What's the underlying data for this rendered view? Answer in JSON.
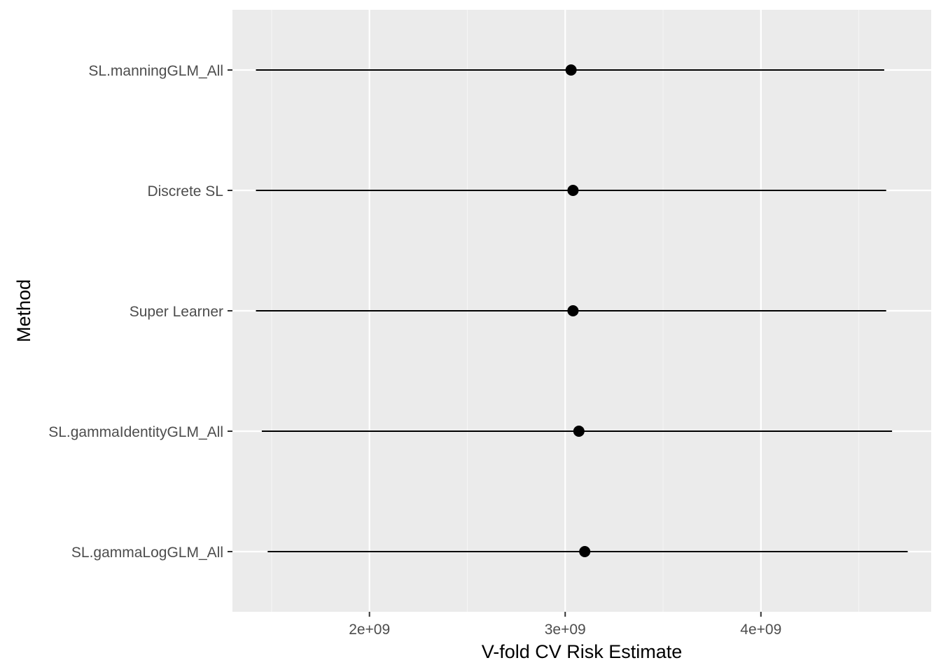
{
  "chart_data": {
    "type": "scatter",
    "subtype": "point-range",
    "title": "",
    "xlabel": "V-fold CV Risk Estimate",
    "ylabel": "Method",
    "xlim": [
      1300000000.0,
      4870000000.0
    ],
    "x_ticks": [
      2000000000.0,
      3000000000.0,
      4000000000.0
    ],
    "x_tick_labels": [
      "2e+09",
      "3e+09",
      "4e+09"
    ],
    "grid": true,
    "legend": "none",
    "categories": [
      "SL.manningGLM_All",
      "Discrete SL",
      "Super Learner",
      "SL.gammaIdentityGLM_All",
      "SL.gammaLogGLM_All"
    ],
    "points": [
      {
        "method": "SL.manningGLM_All",
        "estimate": 3030000000.0,
        "lower": 1420000000.0,
        "upper": 4630000000.0
      },
      {
        "method": "Discrete SL",
        "estimate": 3040000000.0,
        "lower": 1420000000.0,
        "upper": 4640000000.0
      },
      {
        "method": "Super Learner",
        "estimate": 3040000000.0,
        "lower": 1420000000.0,
        "upper": 4640000000.0
      },
      {
        "method": "SL.gammaIdentityGLM_All",
        "estimate": 3070000000.0,
        "lower": 1450000000.0,
        "upper": 4670000000.0
      },
      {
        "method": "SL.gammaLogGLM_All",
        "estimate": 3100000000.0,
        "lower": 1480000000.0,
        "upper": 4750000000.0
      }
    ],
    "colors": {
      "panel_background": "#ebebeb",
      "grid_major": "#ffffff",
      "grid_minor": "#f5f5f5",
      "point": "#000000",
      "errorbar": "#000000",
      "tick_text": "#4d4d4d"
    }
  }
}
